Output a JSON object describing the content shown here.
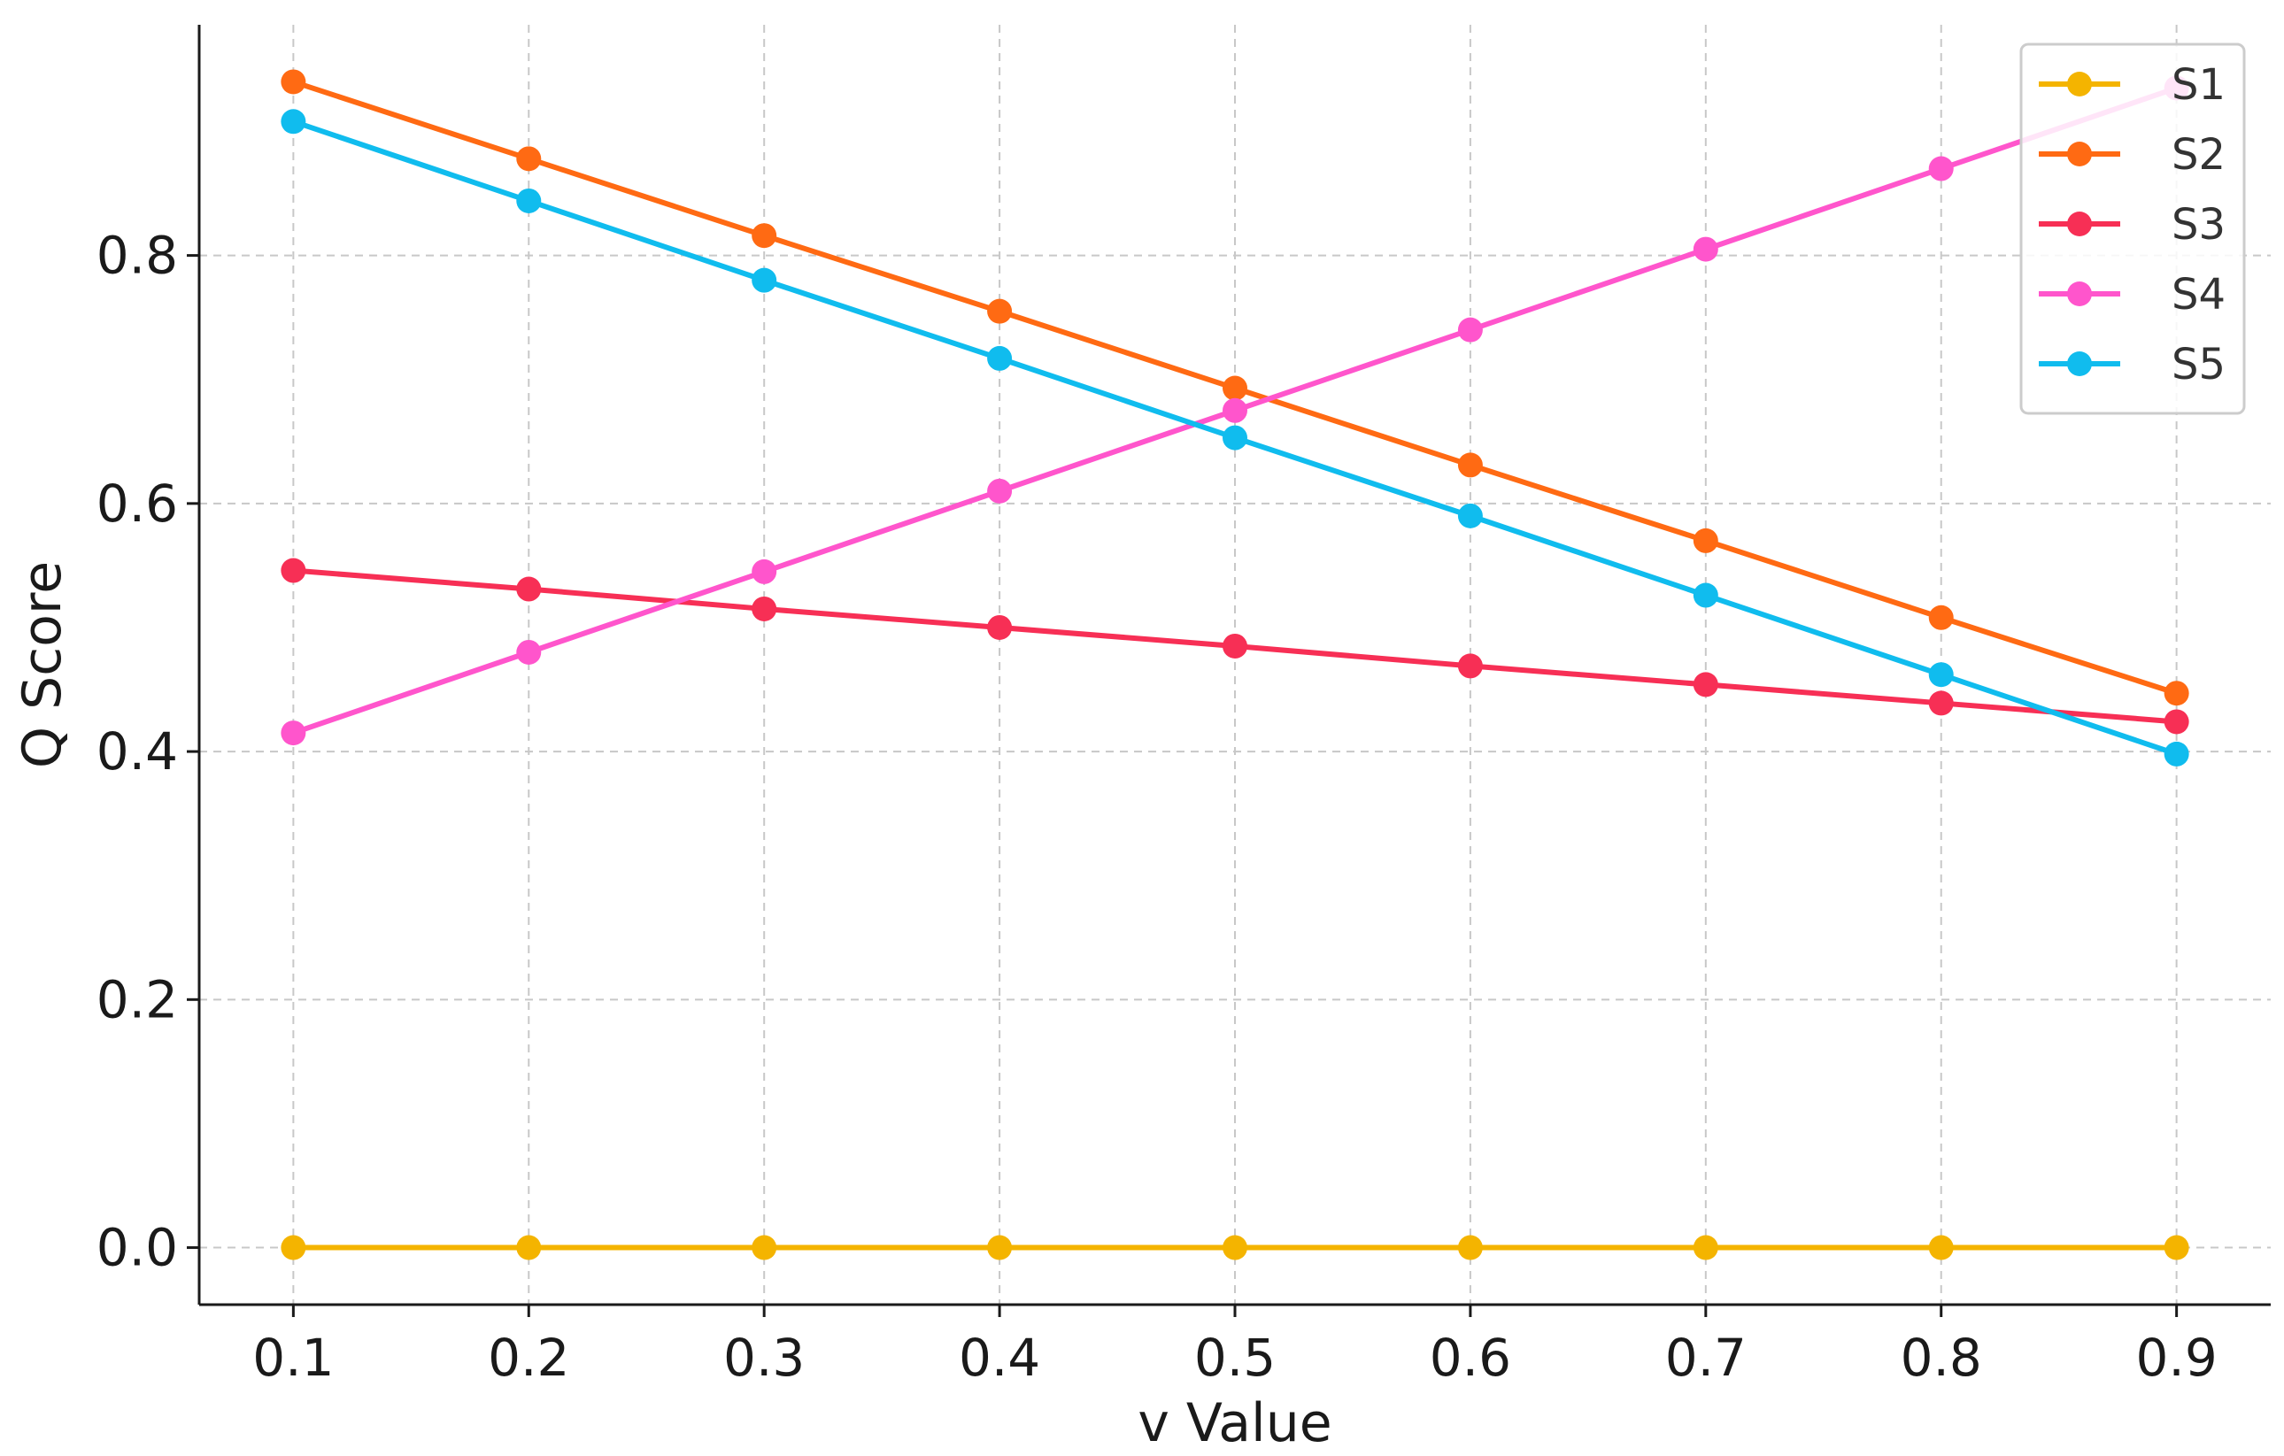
{
  "chart_data": {
    "type": "line",
    "title": "",
    "xlabel": "v Value",
    "ylabel": "Q Score",
    "x": [
      0.1,
      0.2,
      0.3,
      0.4,
      0.5,
      0.6,
      0.7,
      0.8,
      0.9
    ],
    "xlim": [
      0.06,
      0.94
    ],
    "ylim": [
      -0.046,
      0.986
    ],
    "xticks": [
      "0.1",
      "0.2",
      "0.3",
      "0.4",
      "0.5",
      "0.6",
      "0.7",
      "0.8",
      "0.9"
    ],
    "yticks": [
      "0.0",
      "0.2",
      "0.4",
      "0.6",
      "0.8"
    ],
    "grid": true,
    "legend_position": "top-right",
    "series": [
      {
        "name": "S1",
        "color": "#F4B400",
        "values": [
          0.0,
          0.0,
          0.0,
          0.0,
          0.0,
          0.0,
          0.0,
          0.0,
          0.0
        ]
      },
      {
        "name": "S2",
        "color": "#FF6A13",
        "values": [
          0.94,
          0.878,
          0.816,
          0.755,
          0.693,
          0.631,
          0.57,
          0.508,
          0.447
        ]
      },
      {
        "name": "S3",
        "color": "#F72F55",
        "values": [
          0.546,
          0.531,
          0.515,
          0.5,
          0.485,
          0.469,
          0.454,
          0.439,
          0.424
        ]
      },
      {
        "name": "S4",
        "color": "#FF55CC",
        "values": [
          0.415,
          0.48,
          0.545,
          0.61,
          0.675,
          0.74,
          0.805,
          0.87,
          0.935
        ]
      },
      {
        "name": "S5",
        "color": "#10BCEE",
        "values": [
          0.908,
          0.844,
          0.78,
          0.717,
          0.653,
          0.59,
          0.526,
          0.462,
          0.398
        ]
      }
    ]
  }
}
